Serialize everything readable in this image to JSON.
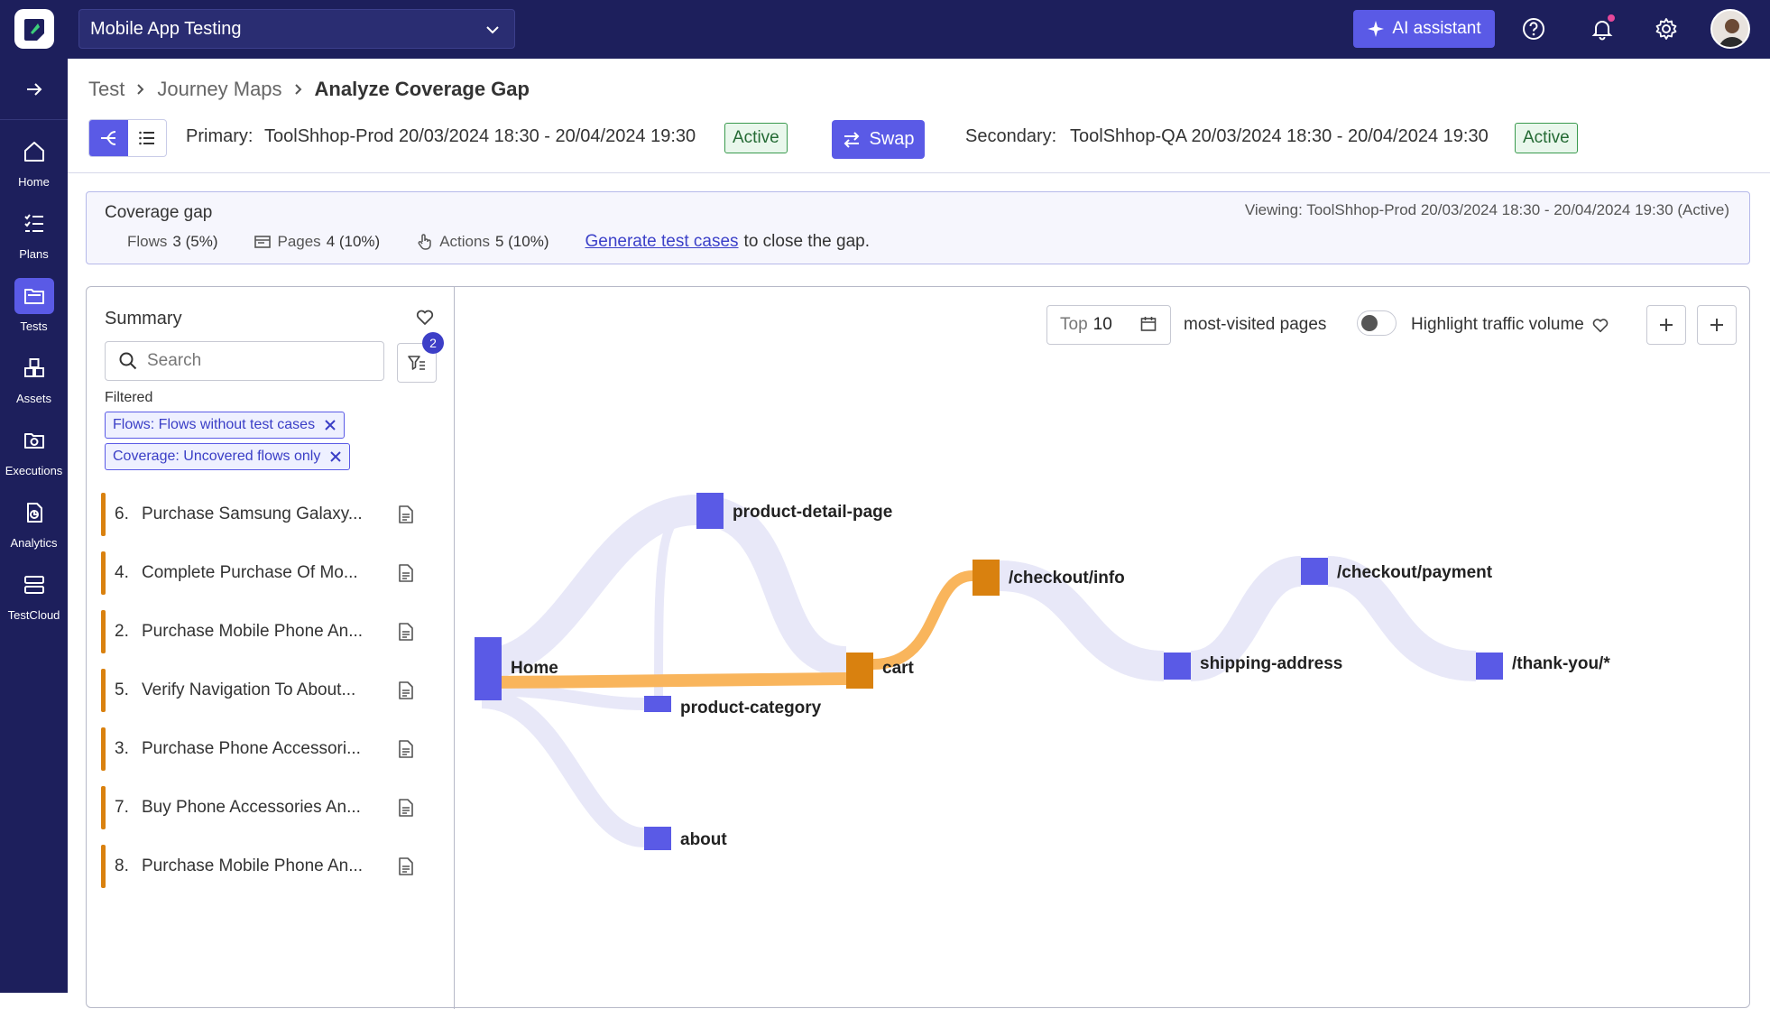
{
  "header": {
    "project": "Mobile App Testing",
    "ai_assistant": "AI assistant"
  },
  "sidebar": {
    "items": [
      {
        "label": "Home",
        "icon": "home-icon"
      },
      {
        "label": "Plans",
        "icon": "plans-icon"
      },
      {
        "label": "Tests",
        "icon": "tests-icon",
        "active": true
      },
      {
        "label": "Assets",
        "icon": "assets-icon"
      },
      {
        "label": "Executions",
        "icon": "executions-icon"
      },
      {
        "label": "Analytics",
        "icon": "analytics-icon"
      },
      {
        "label": "TestCloud",
        "icon": "testcloud-icon"
      }
    ]
  },
  "breadcrumb": {
    "items": [
      "Test",
      "Journey Maps"
    ],
    "current": "Analyze Coverage Gap"
  },
  "environments": {
    "primary_label": "Primary:",
    "primary_value": "ToolShhop-Prod 20/03/2024 18:30 - 20/04/2024 19:30",
    "primary_status": "Active",
    "swap_label": "Swap",
    "secondary_label": "Secondary:",
    "secondary_value": "ToolShhop-QA 20/03/2024 18:30 - 20/04/2024 19:30",
    "secondary_status": "Active"
  },
  "coverage_gap": {
    "title": "Coverage gap",
    "viewing": "Viewing: ToolShhop-Prod 20/03/2024 18:30 - 20/04/2024 19:30 (Active)",
    "flows_label": "Flows",
    "flows_value": "3 (5%)",
    "pages_label": "Pages",
    "pages_value": "4 (10%)",
    "actions_label": "Actions",
    "actions_value": "5 (10%)",
    "link": "Generate test cases",
    "tail": "to close the gap."
  },
  "summary": {
    "title": "Summary",
    "search_placeholder": "Search",
    "filter_count": "2",
    "filtered_label": "Filtered",
    "chips": [
      "Flows: Flows without test cases",
      "Coverage: Uncovered flows only"
    ],
    "flows": [
      {
        "num": "6.",
        "name": "Purchase Samsung Galaxy..."
      },
      {
        "num": "4.",
        "name": "Complete Purchase Of Mo..."
      },
      {
        "num": "2.",
        "name": "Purchase Mobile Phone An..."
      },
      {
        "num": "5.",
        "name": "Verify Navigation To About..."
      },
      {
        "num": "3.",
        "name": "Purchase Phone Accessori..."
      },
      {
        "num": "7.",
        "name": "Buy Phone Accessories An..."
      },
      {
        "num": "8.",
        "name": "Purchase Mobile Phone An..."
      }
    ]
  },
  "map_controls": {
    "top_label": "Top",
    "top_value": "10",
    "most_visited": "most-visited pages",
    "highlight": "Highlight traffic volume"
  },
  "journey": {
    "colors": {
      "node": "#5a5ae6",
      "highlight": "#d9810f",
      "link": "#e6e6f8",
      "highlight_link": "#f9b55c"
    },
    "nodes": [
      {
        "id": "home",
        "label": "Home",
        "highlight": false
      },
      {
        "id": "pdp",
        "label": "product-detail-page",
        "highlight": false
      },
      {
        "id": "pcat",
        "label": "product-category",
        "highlight": false
      },
      {
        "id": "about",
        "label": "about",
        "highlight": false
      },
      {
        "id": "cart",
        "label": "cart",
        "highlight": true
      },
      {
        "id": "info",
        "label": "/checkout/info",
        "highlight": true
      },
      {
        "id": "ship",
        "label": "shipping-address",
        "highlight": false
      },
      {
        "id": "pay",
        "label": "/checkout/payment",
        "highlight": false
      },
      {
        "id": "thanks",
        "label": "/thank-you/*",
        "highlight": false
      }
    ]
  }
}
